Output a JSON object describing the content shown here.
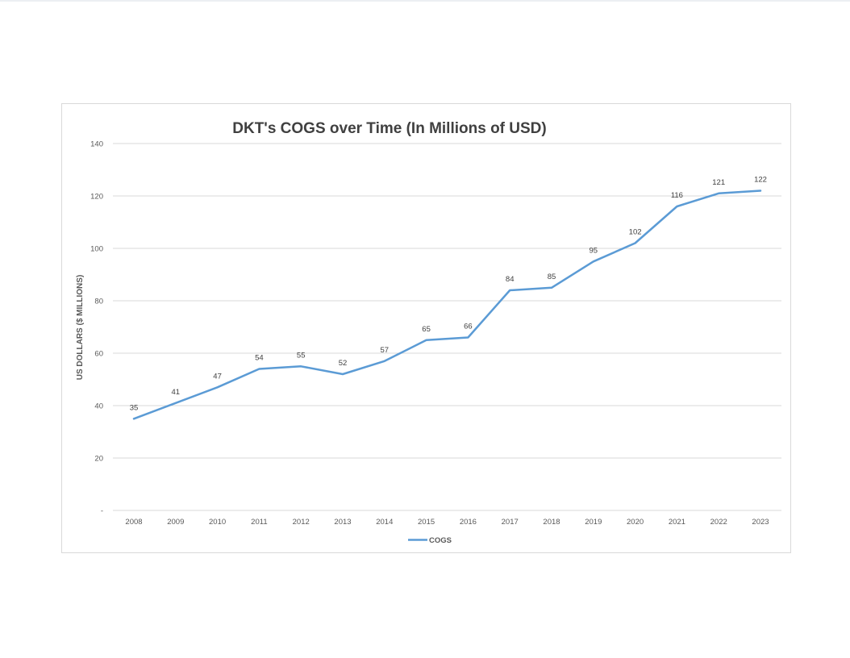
{
  "chart_data": {
    "type": "line",
    "title": "DKT's COGS over Time (In Millions of USD)",
    "ylabel": "US DOLLARS ($ MILLIONS)",
    "xlabel": "",
    "x": [
      "2008",
      "2009",
      "2010",
      "2011",
      "2012",
      "2013",
      "2014",
      "2015",
      "2016",
      "2017",
      "2018",
      "2019",
      "2020",
      "2021",
      "2022",
      "2023"
    ],
    "series": [
      {
        "name": "COGS",
        "values": [
          35,
          41,
          47,
          54,
          55,
          52,
          57,
          65,
          66,
          84,
          85,
          95,
          102,
          116,
          121,
          122
        ],
        "labels": [
          "35",
          "41",
          "47",
          "54",
          "55",
          "52",
          "57",
          "65",
          "66",
          "84",
          "85",
          "95",
          "102",
          "116",
          "121",
          "122"
        ]
      }
    ],
    "ylim": [
      0,
      140
    ],
    "yticks": [
      0,
      20,
      40,
      60,
      80,
      100,
      120,
      140
    ],
    "ytick_labels": [
      "-",
      "20",
      "40",
      "60",
      "80",
      "100",
      "120",
      "140"
    ],
    "grid": true,
    "legend": "bottom-center",
    "line_color": "#5b9bd5",
    "grid_color": "#d9d9d9"
  }
}
